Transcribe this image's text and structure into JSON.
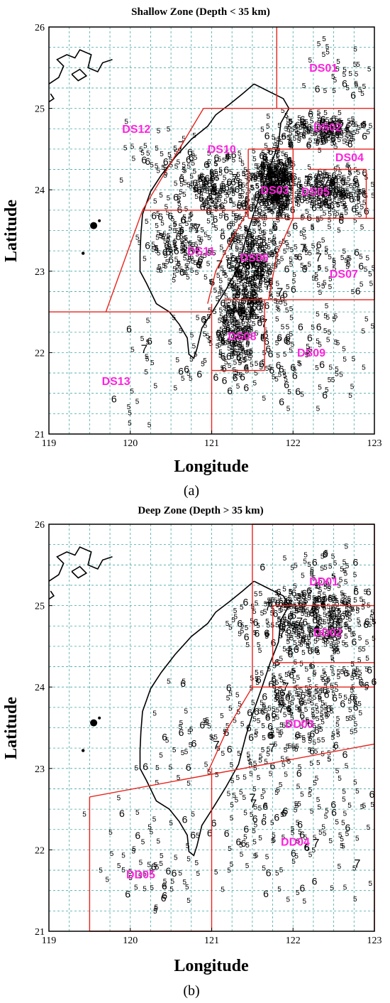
{
  "panels": [
    {
      "key": "a",
      "title": "Shallow  Zone (Depth < 35 km)",
      "caption": "(a)",
      "xlabel": "Longitude",
      "ylabel": "Latitude",
      "xticks": [
        "119",
        "120",
        "121",
        "122",
        "123"
      ],
      "yticks": [
        "21",
        "22",
        "23",
        "24",
        "25",
        "26"
      ],
      "zones": [
        {
          "id": "DS01",
          "lon": 122.2,
          "lat": 25.45
        },
        {
          "id": "DS02",
          "lon": 122.25,
          "lat": 24.72
        },
        {
          "id": "DS04",
          "lon": 122.52,
          "lat": 24.35
        },
        {
          "id": "DS03",
          "lon": 121.6,
          "lat": 23.95
        },
        {
          "id": "DS05",
          "lon": 122.1,
          "lat": 23.93
        },
        {
          "id": "DS10",
          "lon": 120.95,
          "lat": 24.45
        },
        {
          "id": "DS12",
          "lon": 119.9,
          "lat": 24.7
        },
        {
          "id": "DS11",
          "lon": 120.7,
          "lat": 23.2
        },
        {
          "id": "DS06",
          "lon": 121.35,
          "lat": 23.12
        },
        {
          "id": "DS07",
          "lon": 122.45,
          "lat": 22.92
        },
        {
          "id": "DS08",
          "lon": 121.2,
          "lat": 22.15
        },
        {
          "id": "DS09",
          "lon": 122.05,
          "lat": 21.95
        },
        {
          "id": "DS13",
          "lon": 119.65,
          "lat": 21.6
        }
      ],
      "boundaries": [
        [
          [
            121.8,
            26.0
          ],
          [
            121.8,
            25.0
          ]
        ],
        [
          [
            120.9,
            25.0
          ],
          [
            123.0,
            25.0
          ]
        ],
        [
          [
            120.9,
            25.0
          ],
          [
            120.15,
            23.75
          ],
          [
            119.7,
            22.5
          ]
        ],
        [
          [
            119.0,
            22.5
          ],
          [
            121.0,
            22.5
          ]
        ],
        [
          [
            120.15,
            23.75
          ],
          [
            121.45,
            23.75
          ]
        ],
        [
          [
            121.45,
            24.5
          ],
          [
            123.0,
            24.5
          ]
        ],
        [
          [
            122.2,
            24.25
          ],
          [
            122.9,
            24.25
          ]
        ],
        [
          [
            121.45,
            23.65
          ],
          [
            123.0,
            23.65
          ]
        ],
        [
          [
            121.45,
            24.5
          ],
          [
            121.45,
            23.65
          ]
        ],
        [
          [
            122.0,
            24.5
          ],
          [
            122.0,
            23.65
          ]
        ],
        [
          [
            122.9,
            24.25
          ],
          [
            122.9,
            23.65
          ]
        ],
        [
          [
            121.45,
            23.75
          ],
          [
            121.25,
            23.4
          ],
          [
            121.05,
            23.0
          ],
          [
            120.95,
            22.6
          ]
        ],
        [
          [
            122.0,
            23.65
          ],
          [
            121.8,
            23.2
          ],
          [
            121.7,
            22.65
          ]
        ],
        [
          [
            121.15,
            22.65
          ],
          [
            123.0,
            22.65
          ]
        ],
        [
          [
            121.0,
            22.6
          ],
          [
            121.0,
            21.0
          ]
        ],
        [
          [
            121.0,
            21.78
          ],
          [
            121.65,
            21.78
          ]
        ],
        [
          [
            121.65,
            22.65
          ],
          [
            121.65,
            21.78
          ]
        ],
        [
          [
            123.0,
            25.0
          ],
          [
            123.0,
            22.65
          ]
        ]
      ]
    },
    {
      "key": "b",
      "title": "Deep Zone (Depth > 35 km)",
      "caption": "(b)",
      "xlabel": "Longitude",
      "ylabel": "Latitude",
      "xticks": [
        "119",
        "120",
        "121",
        "122",
        "123"
      ],
      "yticks": [
        "21",
        "22",
        "23",
        "24",
        "25",
        "26"
      ],
      "zones": [
        {
          "id": "DD01",
          "lon": 122.2,
          "lat": 25.25
        },
        {
          "id": "DD02",
          "lon": 122.25,
          "lat": 24.62
        },
        {
          "id": "DD03",
          "lon": 121.9,
          "lat": 23.5
        },
        {
          "id": "DD04",
          "lon": 121.85,
          "lat": 22.05
        },
        {
          "id": "DD05",
          "lon": 119.95,
          "lat": 21.65
        }
      ],
      "boundaries": [
        [
          [
            121.5,
            26.0
          ],
          [
            123.0,
            26.0
          ]
        ],
        [
          [
            121.5,
            26.0
          ],
          [
            121.5,
            24.0
          ]
        ],
        [
          [
            121.5,
            24.0
          ],
          [
            123.0,
            24.0
          ]
        ],
        [
          [
            121.75,
            25.0
          ],
          [
            123.0,
            25.0
          ]
        ],
        [
          [
            121.75,
            25.0
          ],
          [
            121.75,
            24.3
          ]
        ],
        [
          [
            121.75,
            24.3
          ],
          [
            123.0,
            24.3
          ]
        ],
        [
          [
            121.5,
            24.0
          ],
          [
            121.2,
            23.5
          ],
          [
            120.95,
            22.95
          ]
        ],
        [
          [
            119.5,
            22.65
          ],
          [
            123.0,
            23.3
          ]
        ],
        [
          [
            121.0,
            23.0
          ],
          [
            121.0,
            21.0
          ]
        ],
        [
          [
            119.5,
            22.65
          ],
          [
            119.5,
            21.0
          ]
        ],
        [
          [
            119.5,
            21.0
          ],
          [
            121.0,
            21.0
          ]
        ],
        [
          [
            123.0,
            26.0
          ],
          [
            123.0,
            21.0
          ]
        ]
      ]
    }
  ]
}
